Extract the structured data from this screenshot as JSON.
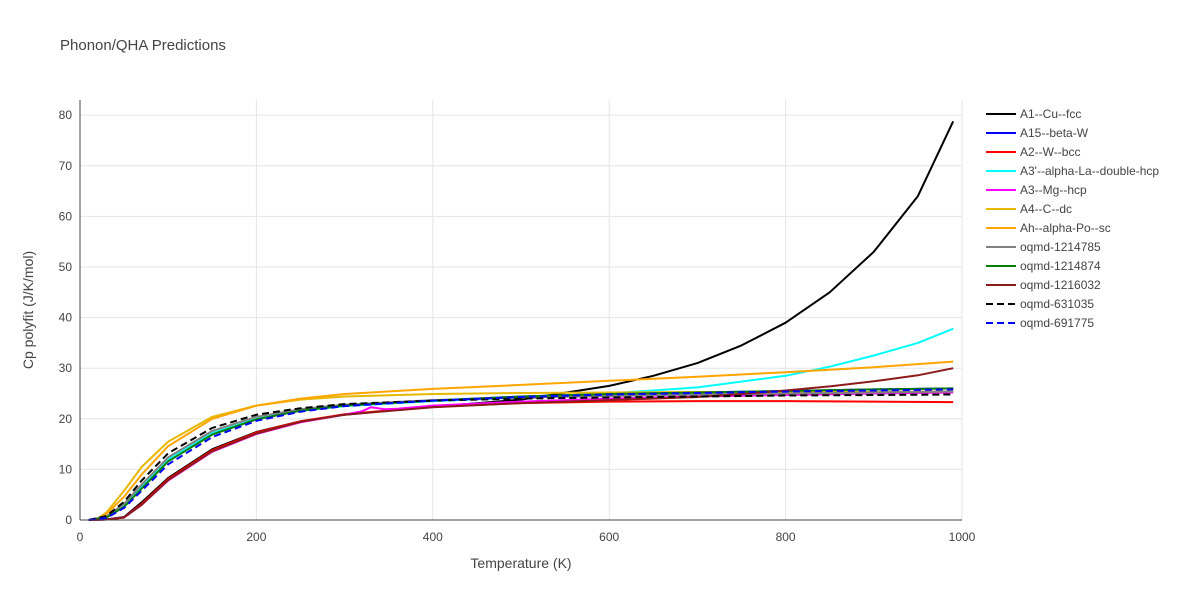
{
  "chart_data": {
    "type": "line",
    "title": "Phonon/QHA Predictions",
    "xlabel": "Temperature (K)",
    "ylabel": "Cp polyfit (J/K/mol)",
    "xlim": [
      0,
      1000
    ],
    "ylim": [
      0,
      83
    ],
    "xticks": [
      0,
      200,
      400,
      600,
      800,
      1000
    ],
    "yticks": [
      0,
      10,
      20,
      30,
      40,
      50,
      60,
      70,
      80
    ],
    "grid": true,
    "legend_position": "right",
    "series": [
      {
        "name": "A1--Cu--fcc",
        "color": "#000000",
        "dash": "solid",
        "x": [
          10,
          30,
          50,
          70,
          100,
          150,
          200,
          250,
          300,
          400,
          500,
          600,
          650,
          700,
          750,
          800,
          850,
          900,
          950,
          990
        ],
        "y": [
          0.0,
          0.1,
          0.6,
          3.5,
          8.3,
          14.0,
          17.4,
          19.5,
          20.8,
          22.4,
          23.8,
          26.5,
          28.5,
          31.0,
          34.5,
          39.0,
          45.0,
          53.0,
          64.0,
          78.8
        ]
      },
      {
        "name": "A15--beta-W",
        "color": "#0000ff",
        "dash": "solid",
        "x": [
          10,
          30,
          50,
          70,
          100,
          150,
          200,
          250,
          300,
          400,
          500,
          600,
          700,
          800,
          900,
          990
        ],
        "y": [
          0.0,
          0.6,
          2.8,
          6.4,
          11.8,
          17.0,
          19.9,
          21.6,
          22.6,
          23.6,
          24.4,
          24.9,
          25.2,
          25.5,
          25.8,
          26.0
        ]
      },
      {
        "name": "A2--W--bcc",
        "color": "#ff0000",
        "dash": "solid",
        "x": [
          10,
          30,
          50,
          70,
          100,
          150,
          200,
          250,
          300,
          400,
          500,
          600,
          700,
          800,
          900,
          990
        ],
        "y": [
          0.0,
          0.1,
          0.5,
          3.2,
          8.1,
          13.8,
          17.3,
          19.5,
          20.9,
          22.4,
          23.1,
          23.4,
          23.5,
          23.5,
          23.4,
          23.3
        ]
      },
      {
        "name": "A3'--alpha-La--double-hcp",
        "color": "#00ffff",
        "dash": "solid",
        "x": [
          10,
          30,
          50,
          70,
          100,
          150,
          200,
          250,
          300,
          400,
          500,
          600,
          700,
          800,
          850,
          900,
          950,
          990
        ],
        "y": [
          0.0,
          0.6,
          3.0,
          6.7,
          12.0,
          17.2,
          20.0,
          21.6,
          22.5,
          23.5,
          24.2,
          25.0,
          26.2,
          28.5,
          30.3,
          32.5,
          35.0,
          37.8
        ]
      },
      {
        "name": "A3--Mg--hcp",
        "color": "#ff00ff",
        "dash": "solid",
        "x": [
          10,
          30,
          50,
          70,
          100,
          150,
          200,
          250,
          300,
          320,
          330,
          345,
          360,
          400,
          500,
          600,
          700,
          800,
          900,
          990
        ],
        "y": [
          0.0,
          0.1,
          0.5,
          3.0,
          7.8,
          13.5,
          17.0,
          19.3,
          20.8,
          21.5,
          22.3,
          21.9,
          22.0,
          22.6,
          23.4,
          24.0,
          24.4,
          24.7,
          25.0,
          25.2
        ]
      },
      {
        "name": "A4--C--dc",
        "color": "#e6b800",
        "dash": "solid",
        "x": [
          10,
          20,
          30,
          50,
          70,
          100,
          150,
          200,
          250,
          300,
          400,
          500,
          600,
          700,
          800,
          900,
          990
        ],
        "y": [
          0.0,
          0.3,
          1.5,
          5.8,
          10.5,
          15.5,
          20.4,
          22.6,
          23.8,
          24.4,
          24.9,
          25.1,
          25.2,
          25.3,
          25.3,
          25.3,
          25.4
        ]
      },
      {
        "name": "Ah--alpha-Po--sc",
        "color": "#ffa500",
        "dash": "solid",
        "x": [
          10,
          20,
          30,
          50,
          70,
          100,
          150,
          200,
          250,
          300,
          400,
          500,
          600,
          700,
          800,
          900,
          990
        ],
        "y": [
          0.0,
          0.2,
          1.2,
          4.6,
          9.0,
          14.6,
          20.0,
          22.6,
          24.0,
          24.9,
          25.9,
          26.7,
          27.5,
          28.3,
          29.2,
          30.2,
          31.3
        ]
      },
      {
        "name": "oqmd-1214785",
        "color": "#808080",
        "dash": "solid",
        "x": [
          10,
          30,
          50,
          70,
          100,
          150,
          200,
          250,
          300,
          400,
          500,
          600,
          700,
          800,
          900,
          990
        ],
        "y": [
          0.0,
          0.7,
          3.2,
          7.0,
          12.4,
          17.6,
          20.4,
          21.9,
          22.8,
          23.7,
          24.2,
          24.5,
          24.8,
          25.0,
          25.2,
          25.4
        ]
      },
      {
        "name": "oqmd-1214874",
        "color": "#008000",
        "dash": "solid",
        "x": [
          10,
          30,
          50,
          70,
          100,
          150,
          200,
          250,
          300,
          400,
          500,
          600,
          700,
          800,
          900,
          990
        ],
        "y": [
          0.0,
          0.5,
          2.6,
          6.2,
          11.6,
          16.9,
          19.9,
          21.6,
          22.6,
          23.6,
          24.4,
          24.9,
          25.2,
          25.5,
          25.8,
          26.0
        ]
      },
      {
        "name": "oqmd-1216032",
        "color": "#8b1a1a",
        "dash": "solid",
        "x": [
          10,
          30,
          50,
          70,
          100,
          150,
          200,
          250,
          300,
          400,
          500,
          600,
          700,
          750,
          800,
          850,
          900,
          950,
          990
        ],
        "y": [
          0.0,
          0.1,
          0.5,
          3.0,
          7.9,
          13.6,
          17.1,
          19.4,
          20.8,
          22.3,
          23.1,
          23.7,
          24.3,
          24.9,
          25.6,
          26.4,
          27.4,
          28.6,
          30.0
        ]
      },
      {
        "name": "oqmd-631035",
        "color": "#000000",
        "dash": "dash",
        "x": [
          10,
          30,
          50,
          70,
          100,
          150,
          200,
          250,
          300,
          400,
          500,
          600,
          700,
          800,
          900,
          990
        ],
        "y": [
          0.0,
          0.8,
          3.6,
          7.8,
          13.2,
          18.2,
          20.8,
          22.1,
          22.9,
          23.6,
          24.0,
          24.2,
          24.4,
          24.6,
          24.7,
          24.8
        ]
      },
      {
        "name": "oqmd-691775",
        "color": "#0000ff",
        "dash": "dash",
        "x": [
          10,
          30,
          50,
          70,
          100,
          150,
          200,
          250,
          300,
          400,
          500,
          600,
          700,
          800,
          900,
          990
        ],
        "y": [
          0.0,
          0.4,
          2.4,
          5.8,
          11.0,
          16.4,
          19.6,
          21.4,
          22.5,
          23.6,
          24.3,
          24.8,
          25.1,
          25.4,
          25.6,
          25.8
        ]
      }
    ]
  }
}
